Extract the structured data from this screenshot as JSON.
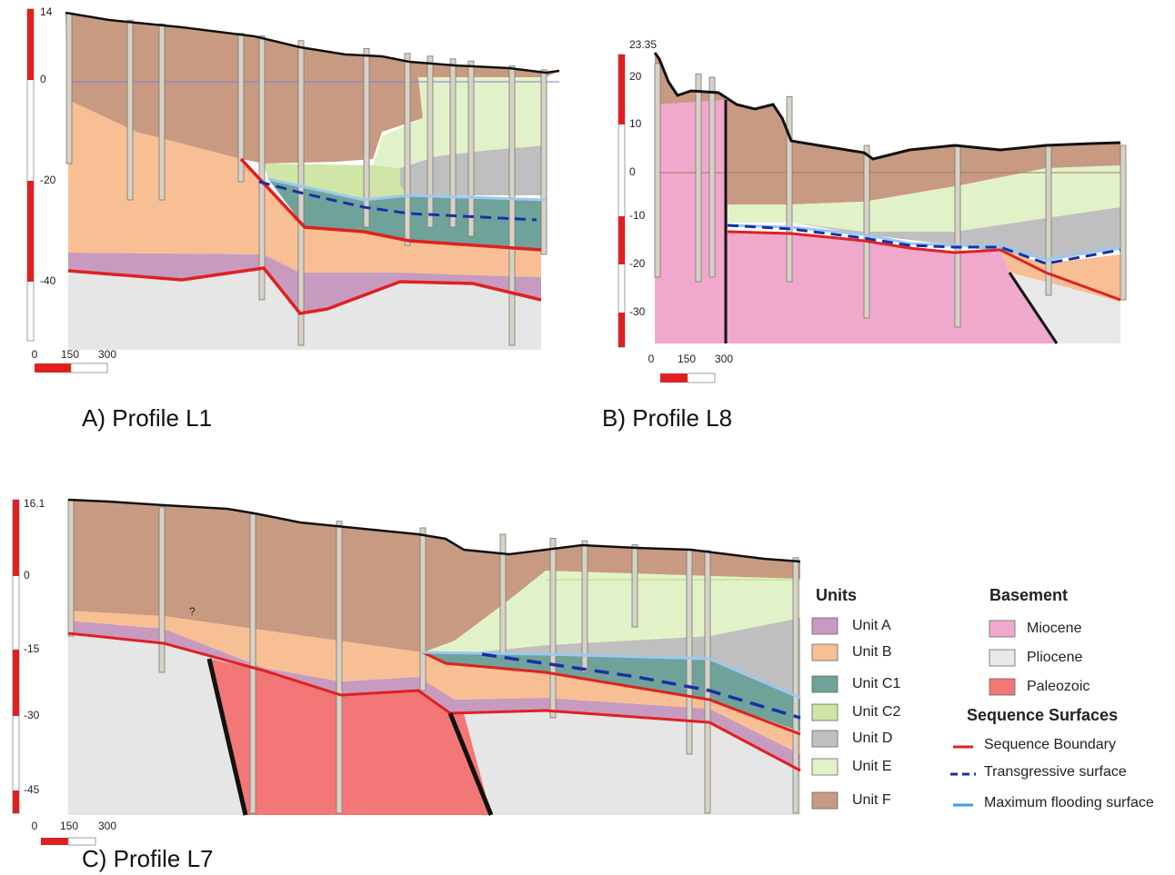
{
  "panels": [
    {
      "caption": "A) Profile L1",
      "elevation_ticks": [
        "14",
        "0",
        "-20",
        "-40"
      ],
      "scale_ticks": [
        "0",
        "150",
        "300"
      ]
    },
    {
      "caption": "B) Profile L8",
      "elevation_ticks": [
        "23.35",
        "20",
        "10",
        "0",
        "-10",
        "-20",
        "-30"
      ],
      "scale_ticks": [
        "0",
        "150",
        "300"
      ]
    },
    {
      "caption": "C) Profile L7",
      "elevation_ticks": [
        "16.1",
        "0",
        "-15",
        "-30",
        "-45"
      ],
      "scale_ticks": [
        "0",
        "150",
        "300"
      ],
      "annotation": "?"
    }
  ],
  "legend": {
    "units_title": "Units",
    "units": [
      "Unit A",
      "Unit B",
      "Unit C1",
      "Unit C2",
      "Unit D",
      "Unit E",
      "Unit F"
    ],
    "basement_title": "Basement",
    "basement": [
      "Miocene",
      "Pliocene",
      "Paleozoic"
    ],
    "surfaces_title": "Sequence Surfaces",
    "surfaces": [
      "Sequence Boundary",
      "Transgressive surface",
      "Maximum flooding surface"
    ]
  }
}
